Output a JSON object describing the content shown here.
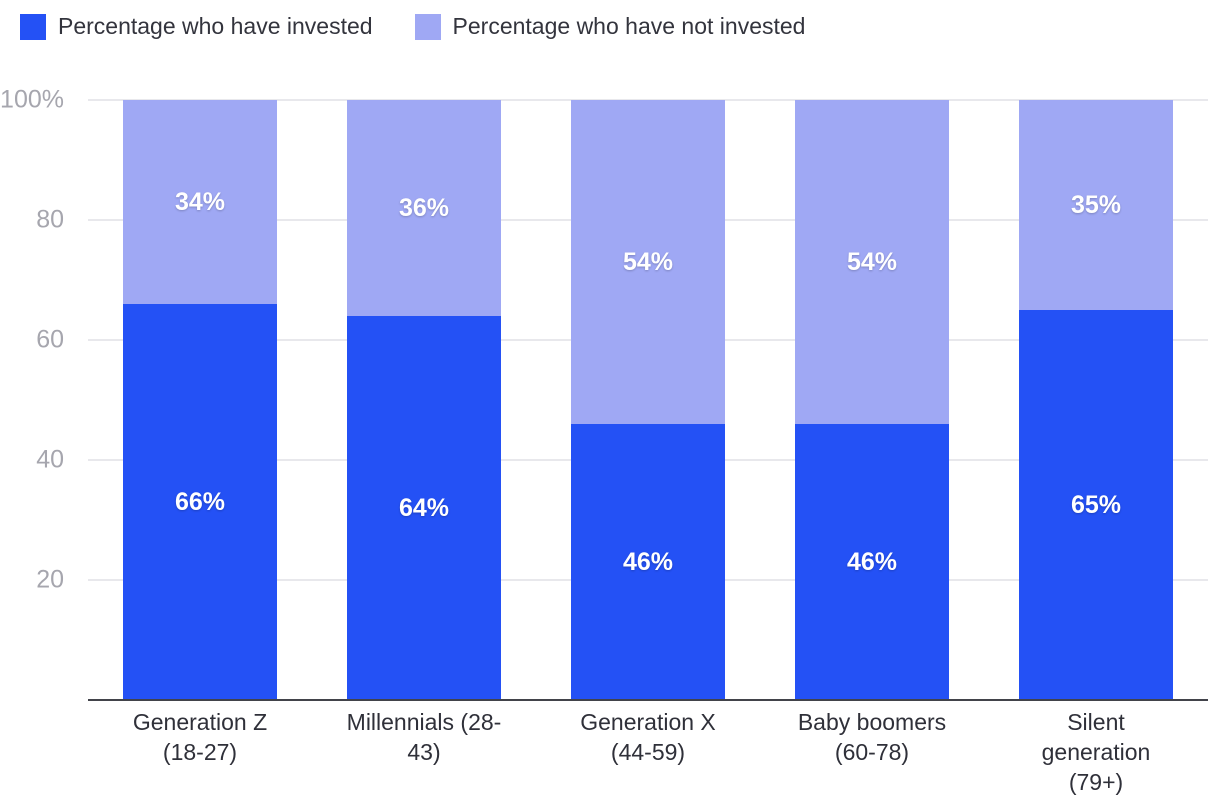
{
  "legend": {
    "items": [
      {
        "label": "Percentage who have invested",
        "color": "#2451F5"
      },
      {
        "label": "Percentage who have not invested",
        "color": "#9FA8F4"
      }
    ]
  },
  "chart_data": {
    "type": "bar",
    "stacked": true,
    "title": "",
    "xlabel": "",
    "ylabel": "",
    "categories": [
      "Generation Z\n(18-27)",
      "Millennials (28-\n43)",
      "Generation X\n(44-59)",
      "Baby boomers\n(60-78)",
      "Silent\ngeneration\n(79+)"
    ],
    "series": [
      {
        "name": "Percentage who have invested",
        "color": "#2451F5",
        "values": [
          66,
          64,
          46,
          46,
          65
        ]
      },
      {
        "name": "Percentage who have not invested",
        "color": "#9FA8F4",
        "values": [
          34,
          36,
          54,
          54,
          35
        ]
      }
    ],
    "ylim": [
      0,
      100
    ],
    "yticks": [
      20,
      40,
      60,
      80,
      100
    ],
    "ytick_labels": [
      "20",
      "40",
      "60",
      "80",
      "100%"
    ],
    "value_suffix": "%",
    "grid": true,
    "legend_position": "top-left",
    "colors": {
      "gridline": "#e8e8ec",
      "baseline": "#42434a",
      "ytick_text": "#a6a6ae",
      "xlabel_text": "#2f3039",
      "value_text": "#ffffff"
    }
  }
}
